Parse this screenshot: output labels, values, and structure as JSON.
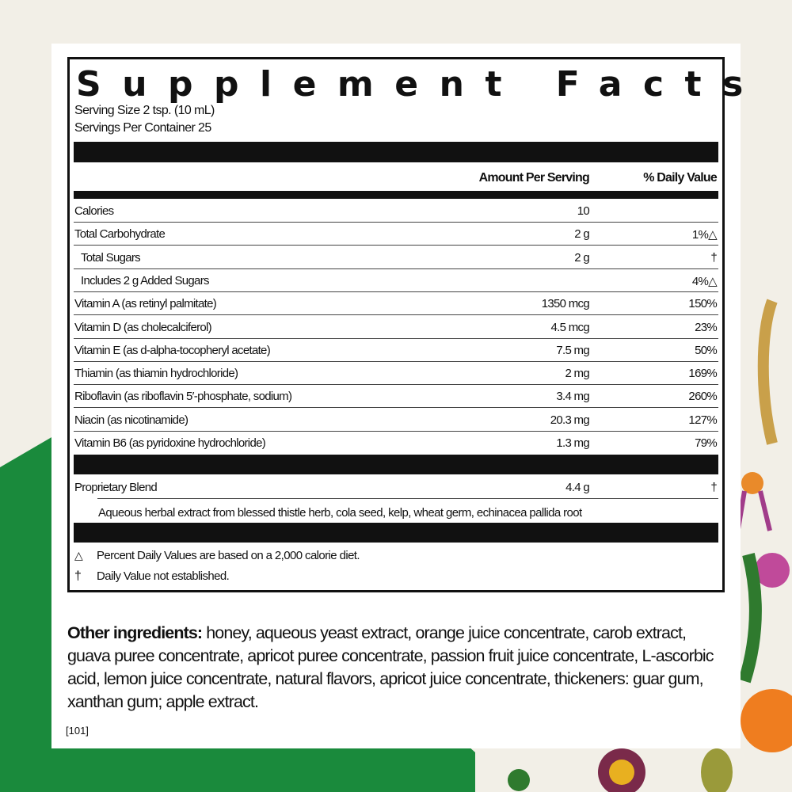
{
  "title": "Supplement Facts",
  "serving_size": "Serving Size 2 tsp. (10 mL)",
  "servings_per_container": "Servings Per Container 25",
  "header": {
    "amount": "Amount Per Serving",
    "daily_value": "% Daily Value"
  },
  "rows": [
    {
      "name": "Calories",
      "amount": "10",
      "dv": ""
    },
    {
      "name": "Total Carbohydrate",
      "amount": "2 g",
      "dv": "1%△"
    },
    {
      "name": "Total Sugars",
      "amount": "2 g",
      "dv": "†"
    },
    {
      "name": "Includes 2 g Added Sugars",
      "amount": "",
      "dv": "4%△"
    },
    {
      "name": "Vitamin A (as retinyl palmitate)",
      "amount": "1350 mcg",
      "dv": "150%"
    },
    {
      "name": "Vitamin D (as cholecalciferol)",
      "amount": "4.5 mcg",
      "dv": "23%"
    },
    {
      "name": "Vitamin E (as d-alpha-tocopheryl acetate)",
      "amount": "7.5 mg",
      "dv": "50%"
    },
    {
      "name": "Thiamin (as thiamin hydrochloride)",
      "amount": "2 mg",
      "dv": "169%"
    },
    {
      "name": "Riboflavin (as riboflavin 5′-phosphate, sodium)",
      "amount": "3.4 mg",
      "dv": "260%"
    },
    {
      "name": "Niacin (as nicotinamide)",
      "amount": "20.3 mg",
      "dv": "127%"
    },
    {
      "name": "Vitamin B6 (as pyridoxine hydrochloride)",
      "amount": "1.3 mg",
      "dv": "79%"
    }
  ],
  "blend": {
    "name": "Proprietary Blend",
    "amount": "4.4 g",
    "dv": "†",
    "description": "Aqueous herbal extract from blessed thistle herb, cola seed, kelp, wheat germ, echinacea pallida root"
  },
  "footnotes": [
    {
      "symbol": "△",
      "text": "Percent Daily Values are based on a 2,000 calorie diet."
    },
    {
      "symbol": "†",
      "text": "Daily Value not established."
    }
  ],
  "other_ingredients": {
    "label": "Other ingredients:",
    "text": " honey, aqueous yeast extract, orange juice concentrate, carob extract, guava puree concentrate, apricot puree concentrate, passion fruit juice concentrate, L-ascorbic acid, lemon juice concentrate, natural flavors, apricot juice concentrate, thickeners: guar gum, xanthan gum; apple extract."
  },
  "code": "[101]",
  "colors": {
    "background": "#f2efe7",
    "green": "#1a8a3c"
  }
}
